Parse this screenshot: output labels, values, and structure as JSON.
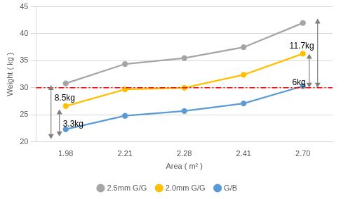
{
  "chart_data": {
    "type": "line",
    "x_label": "Area ( m² )",
    "y_label": "Weight ( kg )",
    "categories": [
      "1.98",
      "2.21",
      "2.28",
      "2.41",
      "2.70"
    ],
    "series": [
      {
        "name": "2.5mm G/G",
        "color": "#a5a5a5",
        "marker": "circle",
        "values": [
          30.8,
          34.4,
          35.5,
          37.5,
          42.0
        ]
      },
      {
        "name": "2.0mm G/G",
        "color": "#ffc000",
        "marker": "circle",
        "values": [
          26.6,
          29.7,
          30.0,
          32.4,
          36.3
        ]
      },
      {
        "name": "G/B",
        "color": "#5b9bd5",
        "marker": "circle",
        "values": [
          22.3,
          24.8,
          25.7,
          27.1,
          30.3
        ]
      }
    ],
    "ylim": [
      20,
      45
    ],
    "yticks": [
      20,
      25,
      30,
      35,
      40,
      45
    ],
    "grid": true,
    "legend": "bottom",
    "hline": {
      "value": 30,
      "color": "#ff0000",
      "line_style": "dashdot"
    },
    "arrows": [
      {
        "label": "8.5kg",
        "category": "1.98",
        "from": 20.5,
        "to": 30.5
      },
      {
        "label": "3.3kg",
        "category": "1.98",
        "from": 21.0,
        "to": 26.0
      },
      {
        "label": "11.7kg",
        "category": "2.70",
        "from": 30.0,
        "to": 42.8
      },
      {
        "label": "6kg",
        "category": "2.70",
        "from": 30.0,
        "to": 36.3
      }
    ]
  }
}
